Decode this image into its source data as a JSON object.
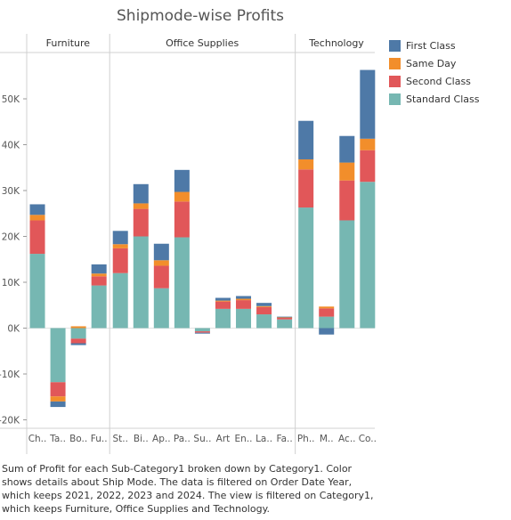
{
  "chart_data": {
    "type": "bar",
    "stacked": true,
    "title": "Shipmode-wise Profits",
    "xlabel": "",
    "ylabel": "",
    "ylim": [
      -22000,
      60000
    ],
    "yticks": [
      -20000,
      -10000,
      0,
      10000,
      20000,
      30000,
      40000,
      50000
    ],
    "ytick_labels": [
      "-20K",
      "-10K",
      "0K",
      "10K",
      "20K",
      "30K",
      "40K",
      "50K"
    ],
    "grid": false,
    "legend_placement": "right",
    "groups": [
      {
        "name": "Furniture",
        "start": 0,
        "count": 4
      },
      {
        "name": "Office Supplies",
        "start": 4,
        "count": 9
      },
      {
        "name": "Technology",
        "start": 13,
        "count": 4
      }
    ],
    "categories": [
      "Ch..",
      "Ta..",
      "Bo..",
      "Fu..",
      "St..",
      "Bi..",
      "Ap..",
      "Pa..",
      "Su..",
      "Art",
      "En..",
      "La..",
      "Fa..",
      "Ph..",
      "M..",
      "Ac..",
      "Co.."
    ],
    "series": [
      {
        "name": "Standard Class",
        "color": "#76b7b2",
        "values": [
          16200,
          -11800,
          -2300,
          9300,
          12000,
          20000,
          8700,
          19800,
          -700,
          4200,
          4200,
          3000,
          1900,
          26300,
          2500,
          23500,
          31900
        ]
      },
      {
        "name": "Second Class",
        "color": "#e15759",
        "values": [
          7300,
          -3100,
          -1000,
          2000,
          5400,
          6000,
          4900,
          7800,
          -300,
          1600,
          1900,
          1600,
          400,
          8300,
          1800,
          8700,
          6900
        ]
      },
      {
        "name": "Same Day",
        "color": "#f28e2b",
        "values": [
          1200,
          -1100,
          400,
          600,
          900,
          1200,
          1200,
          2100,
          0,
          200,
          300,
          200,
          100,
          2200,
          400,
          3900,
          2500
        ]
      },
      {
        "name": "First Class",
        "color": "#4e79a7",
        "values": [
          2300,
          -1200,
          -400,
          2000,
          2900,
          4200,
          3600,
          4800,
          -200,
          600,
          600,
          700,
          100,
          8400,
          -1400,
          5800,
          15000
        ]
      }
    ]
  },
  "legend": [
    {
      "label": "First Class",
      "color": "#4e79a7"
    },
    {
      "label": "Same Day",
      "color": "#f28e2b"
    },
    {
      "label": "Second Class",
      "color": "#e15759"
    },
    {
      "label": "Standard Class",
      "color": "#76b7b2"
    }
  ],
  "caption": "Sum of Profit for each Sub-Category1 broken down by Category1.  Color shows details about Ship Mode. The data is filtered on Order Date Year, which keeps 2021, 2022, 2023 and 2024. The view is filtered on Category1, which keeps Furniture, Office Supplies and Technology."
}
